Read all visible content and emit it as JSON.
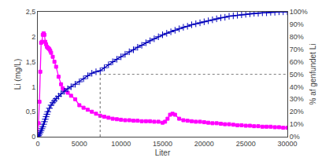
{
  "chart_data": {
    "type": "line",
    "xlabel": "Liter",
    "ylabel": "Li (mg/L)",
    "y2label": "% af genfundet Li",
    "xlim": [
      0,
      30000
    ],
    "xticks": [
      0,
      5000,
      10000,
      15000,
      20000,
      25000,
      30000
    ],
    "ylim": [
      0,
      2.5
    ],
    "yticks": [
      0,
      {
        "value": 0.5,
        "label": "0,5"
      },
      1,
      {
        "value": 1.5,
        "label": "1,5"
      },
      2,
      {
        "value": 2.5,
        "label": "2,5"
      }
    ],
    "y2lim": [
      0,
      1.0
    ],
    "y2ticks": [
      {
        "value": 0,
        "label": "0%"
      },
      {
        "value": 0.1,
        "label": "10%"
      },
      {
        "value": 0.2,
        "label": "20%"
      },
      {
        "value": 0.3,
        "label": "30%"
      },
      {
        "value": 0.4,
        "label": "40%"
      },
      {
        "value": 0.5,
        "label": "50%"
      },
      {
        "value": 0.6,
        "label": "60%"
      },
      {
        "value": 0.7,
        "label": "70%"
      },
      {
        "value": 0.8,
        "label": "80%"
      },
      {
        "value": 0.9,
        "label": "90%"
      },
      {
        "value": 1.0,
        "label": "100%"
      }
    ],
    "grid": false,
    "series": [
      {
        "color": "#FF00FF",
        "marker": "square",
        "line_style": "solid",
        "x": [
          0,
          100,
          200,
          300,
          400,
          500,
          600,
          700,
          800,
          900,
          1000,
          1100,
          1200,
          1300,
          1400,
          1500,
          1600,
          1800,
          2000,
          2200,
          2500,
          2800,
          3000,
          3200,
          3600,
          4000,
          4500,
          5000,
          5500,
          6000,
          6500,
          7000,
          7500,
          8000,
          8500,
          9000,
          9500,
          10000,
          10500,
          11000,
          11500,
          12000,
          12500,
          13000,
          13500,
          14000,
          14500,
          15000,
          15300,
          15600,
          15900,
          16200,
          16500,
          17000,
          17500,
          18000,
          18500,
          19000,
          19500,
          20000,
          20500,
          21000,
          21500,
          22000,
          22500,
          23000,
          23500,
          24000,
          24500,
          25000,
          25500,
          26000,
          26500,
          27000,
          27500,
          28000,
          28500,
          29000,
          29500,
          30000
        ],
        "values": [
          0.01,
          0.27,
          0.7,
          1.3,
          1.88,
          1.9,
          2.04,
          2.07,
          2.04,
          1.9,
          1.85,
          1.8,
          1.78,
          1.77,
          1.75,
          1.72,
          1.68,
          1.6,
          1.5,
          1.4,
          1.2,
          1.05,
          0.97,
          0.93,
          0.88,
          0.82,
          0.75,
          0.63,
          0.58,
          0.54,
          0.5,
          0.46,
          0.42,
          0.4,
          0.38,
          0.36,
          0.35,
          0.34,
          0.33,
          0.33,
          0.32,
          0.32,
          0.31,
          0.31,
          0.31,
          0.3,
          0.3,
          0.28,
          0.3,
          0.36,
          0.44,
          0.46,
          0.44,
          0.36,
          0.33,
          0.32,
          0.31,
          0.3,
          0.3,
          0.29,
          0.28,
          0.27,
          0.27,
          0.26,
          0.25,
          0.25,
          0.24,
          0.23,
          0.23,
          0.22,
          0.22,
          0.21,
          0.21,
          0.2,
          0.2,
          0.2,
          0.19,
          0.19,
          0.18,
          0.18
        ]
      },
      {
        "color": "#0000BB",
        "marker": "plus",
        "line_style": "solid",
        "axis": "y2",
        "x": [
          0,
          100,
          200,
          300,
          400,
          500,
          600,
          700,
          800,
          900,
          1000,
          1100,
          1200,
          1400,
          1600,
          1800,
          2000,
          2200,
          2500,
          2800,
          3200,
          3600,
          4000,
          4500,
          5000,
          5500,
          6000,
          6500,
          7000,
          7500,
          8000,
          8500,
          9000,
          9500,
          10000,
          10500,
          11000,
          11500,
          12000,
          12500,
          13000,
          13500,
          14000,
          14500,
          15000,
          15500,
          16000,
          16500,
          17000,
          17500,
          18000,
          18500,
          19000,
          19500,
          20000,
          20500,
          21000,
          21500,
          22000,
          22500,
          23000,
          23500,
          24000,
          24500,
          25000,
          25500,
          26000,
          26500,
          27000,
          27500,
          28000,
          28500,
          29000,
          29500,
          30000
        ],
        "values": [
          0.0,
          0.008,
          0.02,
          0.033,
          0.048,
          0.064,
          0.08,
          0.1,
          0.12,
          0.14,
          0.16,
          0.18,
          0.2,
          0.228,
          0.252,
          0.272,
          0.288,
          0.304,
          0.324,
          0.344,
          0.364,
          0.384,
          0.4,
          0.42,
          0.44,
          0.464,
          0.488,
          0.508,
          0.52,
          0.528,
          0.552,
          0.576,
          0.6,
          0.62,
          0.64,
          0.66,
          0.68,
          0.696,
          0.716,
          0.732,
          0.752,
          0.768,
          0.784,
          0.8,
          0.816,
          0.828,
          0.84,
          0.852,
          0.864,
          0.876,
          0.884,
          0.896,
          0.904,
          0.912,
          0.92,
          0.928,
          0.936,
          0.944,
          0.952,
          0.956,
          0.964,
          0.968,
          0.972,
          0.976,
          0.98,
          0.984,
          0.988,
          0.988,
          0.992,
          0.992,
          0.996,
          0.996,
          1.0,
          1.0,
          1.0
        ]
      },
      {
        "color": "gray",
        "marker": "none",
        "line_style": "dotted",
        "x": [
          7500,
          7500,
          30000
        ],
        "values": [
          0,
          1.25,
          1.25
        ]
      }
    ]
  }
}
